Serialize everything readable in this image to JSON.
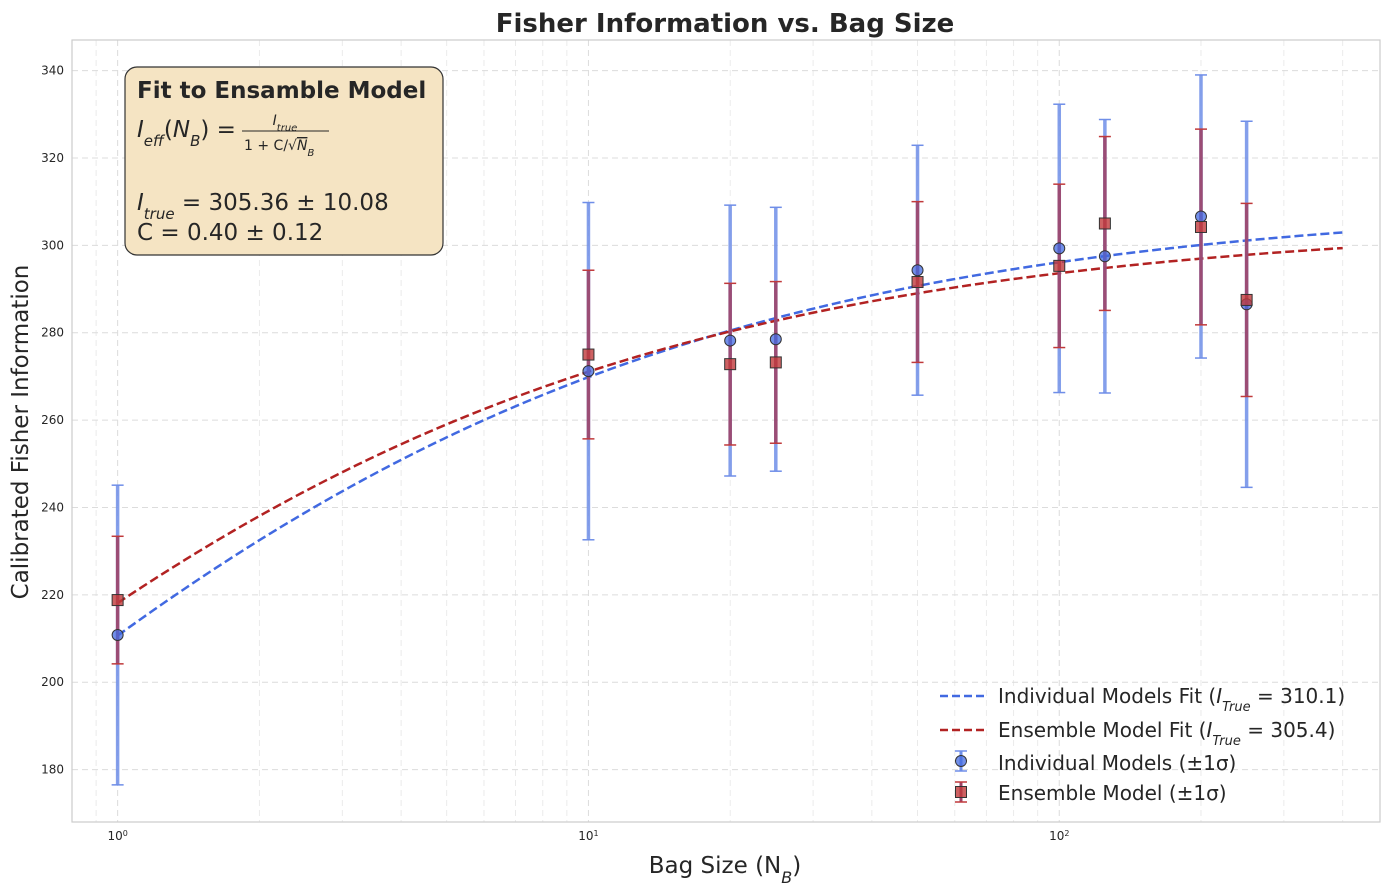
{
  "chart_data": {
    "type": "scatter",
    "title": "Fisher Information vs. Bag Size",
    "xlabel": "Bag Size (N",
    "xlabel_sub": "B",
    "xlabel_close": ")",
    "ylabel": "Calibrated Fisher Information",
    "xscale": "log",
    "xlim": [
      0.8,
      480
    ],
    "ylim": [
      168,
      347
    ],
    "x_ticks": [
      {
        "value": 1,
        "base": "10",
        "exp": "0"
      },
      {
        "value": 10,
        "base": "10",
        "exp": "1"
      },
      {
        "value": 100,
        "base": "10",
        "exp": "2"
      }
    ],
    "y_ticks": [
      180,
      200,
      220,
      240,
      260,
      280,
      300,
      320,
      340
    ],
    "grid": true,
    "legend_position": "bottom-right",
    "colors": {
      "individual": "#4169e1",
      "individual_err": "#6f8ee8",
      "ensemble": "#c0393b",
      "ensemble_err": "#9d4468",
      "ensemble_fit": "#b22222",
      "annotation_bg": "#f5e4c3"
    },
    "series": [
      {
        "name": "Individual Models (±1σ)",
        "marker": "circle",
        "x": [
          1,
          10,
          20,
          25,
          50,
          100,
          125,
          200,
          250
        ],
        "y": [
          210.8,
          271.2,
          278.2,
          278.5,
          294.3,
          299.3,
          297.5,
          306.6,
          286.5
        ],
        "err": [
          34.3,
          38.6,
          31.0,
          30.2,
          28.6,
          33.0,
          31.3,
          32.4,
          41.9
        ]
      },
      {
        "name": "Ensemble Model (±1σ)",
        "marker": "square",
        "x": [
          1,
          10,
          20,
          25,
          50,
          100,
          125,
          200,
          250
        ],
        "y": [
          218.8,
          275.0,
          272.8,
          273.2,
          291.6,
          295.3,
          305.0,
          304.2,
          287.5
        ],
        "err": [
          14.6,
          19.3,
          18.5,
          18.5,
          18.4,
          18.7,
          19.9,
          22.4,
          22.1
        ]
      }
    ],
    "fits": [
      {
        "name": "Individual Models Fit",
        "label_prefix": "Individual Models Fit (",
        "sym": "I",
        "sub": "True",
        "label_value": " = 310.1)",
        "I_true": 310.1,
        "C": 0.472,
        "x_range": [
          1,
          400
        ]
      },
      {
        "name": "Ensemble Model Fit",
        "label_prefix": "Ensemble Model Fit (",
        "sym": "I",
        "sub": "True",
        "label_value": " = 305.4)",
        "I_true": 305.36,
        "C": 0.4,
        "x_range": [
          1,
          400
        ]
      }
    ],
    "annotation": {
      "title": "Fit to Ensamble Model",
      "formula": {
        "lhs_sym": "I",
        "lhs_sub": "eff",
        "arg": "N",
        "arg_sub": "B",
        "num": "I",
        "num_sub": "true",
        "den_prefix": "1 + C/",
        "den_sym": "N",
        "den_sub": "B"
      },
      "line1": {
        "sym": "I",
        "sub": "true",
        "text": " = 305.36 ± 10.08"
      },
      "line2": {
        "text": "C = 0.40 ± 0.12"
      }
    }
  }
}
